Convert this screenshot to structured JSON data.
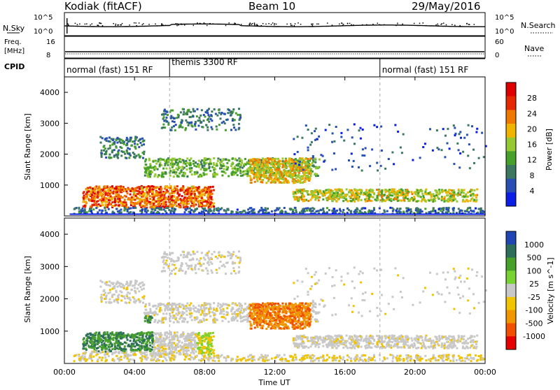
{
  "header": {
    "station": "Kodiak (fitACF)",
    "beam": "Beam 10",
    "date": "29/May/2016"
  },
  "left_labels": {
    "nsky": "N.Sky",
    "freq_line1": "Freq.",
    "freq_line2": "[MHz]",
    "cpid": "CPID"
  },
  "right_labels": {
    "nsearch": "N.Search",
    "nave": "Nave"
  },
  "noise_panel": {
    "left_ticks": [
      "10^5",
      "10^0"
    ],
    "right_ticks": [
      "10^5",
      "10^0"
    ]
  },
  "freq_panel": {
    "left_ticks": [
      "16",
      "8"
    ],
    "right_ticks": [
      "60",
      "0"
    ]
  },
  "cpid_segments": [
    {
      "label": "normal (fast) 151 RF",
      "start": 0,
      "end": 6
    },
    {
      "label": "themis 3300 RF",
      "start": 6,
      "end": 18
    },
    {
      "label": "normal (fast) 151 RF",
      "start": 18,
      "end": 24
    }
  ],
  "colors": {
    "power_scale": [
      "#0a1ee6",
      "#2850b4",
      "#3c7860",
      "#46a02a",
      "#96c832",
      "#f0b400",
      "#f07800",
      "#e62800",
      "#dc0000"
    ],
    "velocity_scale": [
      "#e60000",
      "#f05000",
      "#f09600",
      "#f0c400",
      "#c8c8c8",
      "#78d232",
      "#46a02a",
      "#2d6e5a",
      "#1e46b4"
    ],
    "velocity_blocks": [
      "#2046b4",
      "#2d6e5a",
      "#46a02a",
      "#78d232",
      "#c8c8c8",
      "#f0c400",
      "#f09600",
      "#f05000",
      "#e60000"
    ]
  },
  "chart_data": [
    {
      "type": "heatmap",
      "ylabel": "Slant Range [km]",
      "yticks": [
        "1000",
        "2000",
        "3000",
        "4000"
      ],
      "ylim": [
        0,
        4500
      ],
      "xlim": [
        0,
        24
      ],
      "colorbar": {
        "label": "Power [dB]",
        "ticks": [
          "4",
          "8",
          "12",
          "16",
          "20",
          "24",
          "28"
        ],
        "range": [
          0,
          32
        ]
      }
    },
    {
      "type": "heatmap",
      "ylabel": "Slant Range [km]",
      "yticks": [
        "1000",
        "2000",
        "3000",
        "4000"
      ],
      "ylim": [
        0,
        4500
      ],
      "xlim": [
        0,
        24
      ],
      "colorbar": {
        "label": "Velocity [m s^-1]",
        "ticks": [
          "1000",
          "500",
          "100",
          "25",
          "-25",
          "-100",
          "-500",
          "-1000"
        ]
      }
    }
  ],
  "xaxis": {
    "label": "Time UT",
    "ticks": [
      "00:00",
      "04:00",
      "08:00",
      "12:00",
      "16:00",
      "20:00",
      "00:00"
    ]
  }
}
